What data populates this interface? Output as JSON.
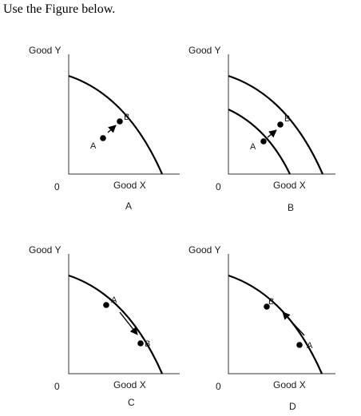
{
  "instruction": "Use the Figure below.",
  "axis_labels": {
    "y": "Good Y",
    "x": "Good X",
    "origin": "0"
  },
  "panels": [
    {
      "label": "A",
      "point_labels": [
        "A",
        "B"
      ]
    },
    {
      "label": "B",
      "point_labels": [
        "A",
        "B"
      ]
    },
    {
      "label": "C",
      "point_labels": [
        "A",
        "B"
      ]
    },
    {
      "label": "D",
      "point_labels": [
        "B",
        "A"
      ]
    }
  ],
  "colors": {
    "ink": "#000000",
    "axis": "#333333",
    "background": "#ffffff"
  }
}
